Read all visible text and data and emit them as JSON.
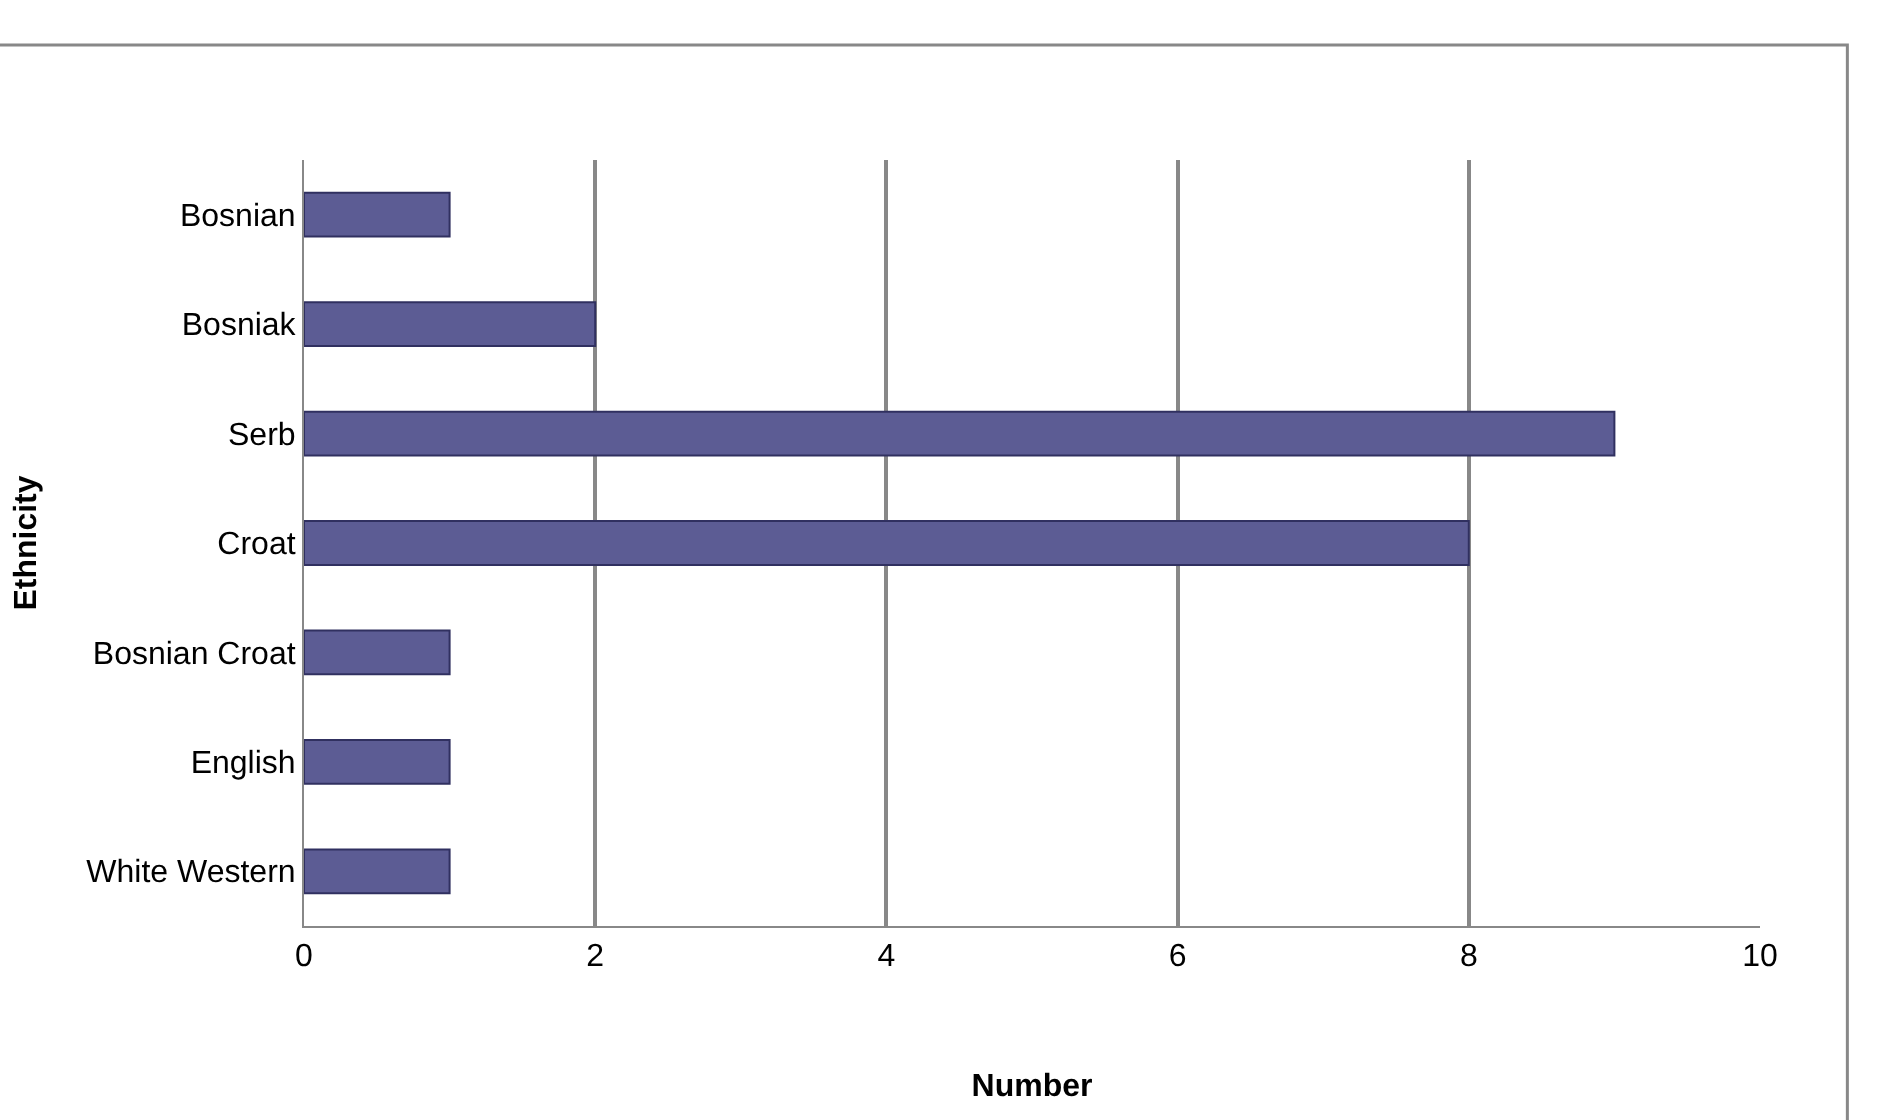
{
  "chart_data": {
    "type": "bar",
    "orientation": "horizontal",
    "xlabel": "Number",
    "ylabel": "Ethnicity",
    "categories": [
      "Bosnian",
      "Bosniak",
      "Serb",
      "Croat",
      "Bosnian Croat",
      "English",
      "White Western"
    ],
    "values": [
      1,
      2,
      9,
      8,
      1,
      1,
      1
    ],
    "color": "#5c5c94",
    "xlim": [
      0,
      10
    ],
    "xticks": [
      0,
      2,
      4,
      6,
      8,
      10
    ],
    "grid": "x",
    "legend": false
  }
}
